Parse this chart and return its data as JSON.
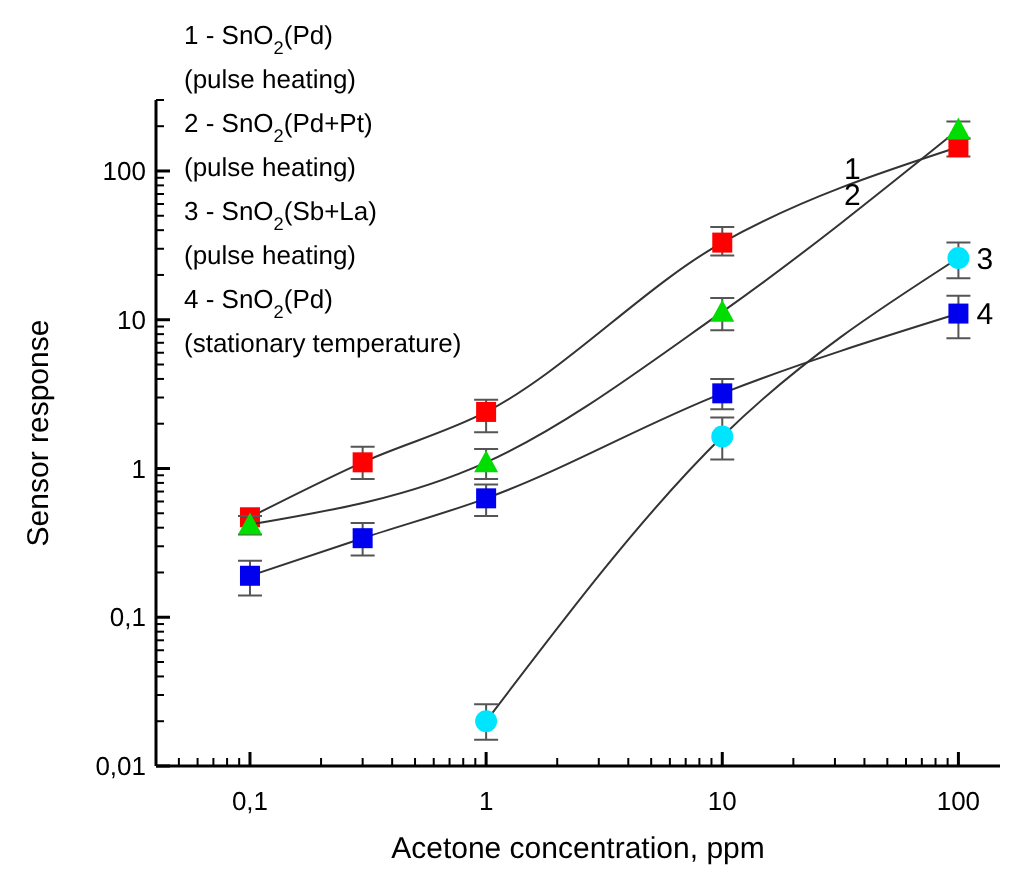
{
  "chart_data": {
    "type": "line",
    "xlabel": "Acetone concentration, ppm",
    "ylabel": "Sensor response",
    "log": "xy",
    "xlim": [
      0.04,
      150
    ],
    "xticks": [
      {
        "value": 0.1,
        "label": "0,1"
      },
      1,
      10,
      100
    ],
    "ylim": [
      0.01,
      300
    ],
    "yticks": [
      {
        "value": 0.01,
        "label": "0,01"
      },
      {
        "value": 0.1,
        "label": "0,1"
      },
      1,
      10,
      100
    ],
    "grid": false,
    "line_style": "solid",
    "series": [
      {
        "name": "1",
        "color": "#ff0000",
        "marker": "square",
        "x": [
          0.1,
          0.3,
          1,
          10,
          100
        ],
        "values": [
          0.47,
          1.1,
          2.4,
          33,
          145
        ],
        "errors": [
          null,
          [
            0.85,
            1.4
          ],
          [
            1.75,
            2.9
          ],
          [
            27,
            42
          ],
          [
            125,
            165
          ]
        ]
      },
      {
        "name": "2",
        "color": "#00dd00",
        "marker": "triangle",
        "x": [
          0.1,
          1,
          10,
          100
        ],
        "values": [
          0.42,
          1.1,
          11.3,
          190
        ],
        "errors": [
          [
            0.36,
            0.48
          ],
          [
            0.85,
            1.35
          ],
          [
            8.5,
            14
          ],
          [
            165,
            215
          ]
        ]
      },
      {
        "name": "3",
        "color": "#00e5ff",
        "marker": "circle",
        "x": [
          1,
          10,
          100
        ],
        "values": [
          0.02,
          1.64,
          26
        ],
        "errors": [
          [
            0.015,
            0.026
          ],
          [
            1.15,
            2.2
          ],
          [
            19,
            33
          ]
        ]
      },
      {
        "name": "4",
        "color": "#0000ee",
        "marker": "square",
        "x": [
          0.1,
          0.3,
          1,
          10,
          100
        ],
        "values": [
          0.19,
          0.34,
          0.63,
          3.2,
          11
        ],
        "errors": [
          [
            0.14,
            0.24
          ],
          [
            0.26,
            0.43
          ],
          [
            0.48,
            0.78
          ],
          [
            2.5,
            4
          ],
          [
            7.5,
            14.5
          ]
        ]
      }
    ],
    "annotations": [
      "1 - SnO$_{2}$(Pd)",
      "(pulse heating)",
      "2 - SnO$_{2}$(Pd+Pt)",
      "(pulse heating)",
      "3 - SnO$_{2}$(Sb+La)",
      "(pulse heating)",
      "4 - SnO$_{2}$(Pd)",
      "(stationary temperature)"
    ]
  }
}
